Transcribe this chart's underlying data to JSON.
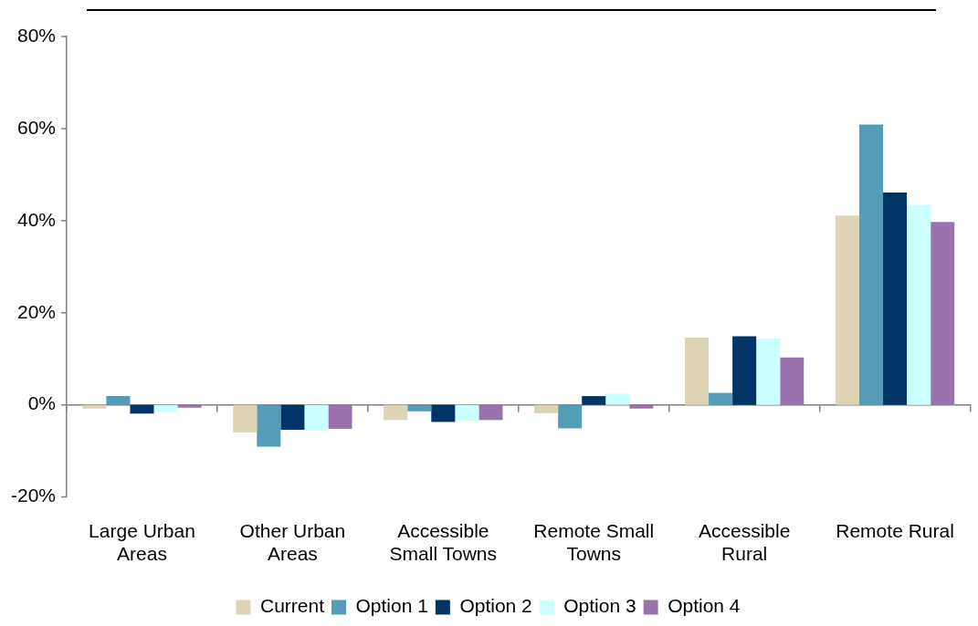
{
  "chart_data": {
    "type": "bar",
    "categories": [
      "Large Urban Areas",
      "Other Urban Areas",
      "Accessible Small Towns",
      "Remote Small Towns",
      "Accessible Rural",
      "Remote Rural"
    ],
    "series": [
      {
        "name": "Current",
        "color": "#dfd3b6",
        "values": [
          -0.8,
          -6.0,
          -3.3,
          -1.8,
          14.6,
          41.1
        ]
      },
      {
        "name": "Option 1",
        "color": "#539db8",
        "values": [
          1.9,
          -9.1,
          -1.4,
          -5.1,
          2.6,
          60.9
        ]
      },
      {
        "name": "Option 2",
        "color": "#003366",
        "values": [
          -1.9,
          -5.4,
          -3.7,
          1.9,
          14.9,
          46.1
        ]
      },
      {
        "name": "Option 3",
        "color": "#ccffff",
        "values": [
          -1.6,
          -5.6,
          -3.5,
          2.4,
          14.4,
          43.4
        ]
      },
      {
        "name": "Option 4",
        "color": "#9a73ae",
        "values": [
          -0.6,
          -5.2,
          -3.3,
          -0.8,
          10.3,
          39.7
        ]
      }
    ],
    "ylim": [
      -20,
      80
    ],
    "yticks": [
      {
        "value": -20,
        "label": "-20%"
      },
      {
        "value": 0,
        "label": "0%"
      },
      {
        "value": 20,
        "label": "20%"
      },
      {
        "value": 40,
        "label": "40%"
      },
      {
        "value": 60,
        "label": "60%"
      },
      {
        "value": 80,
        "label": "80%"
      }
    ],
    "legend": "bottom"
  }
}
